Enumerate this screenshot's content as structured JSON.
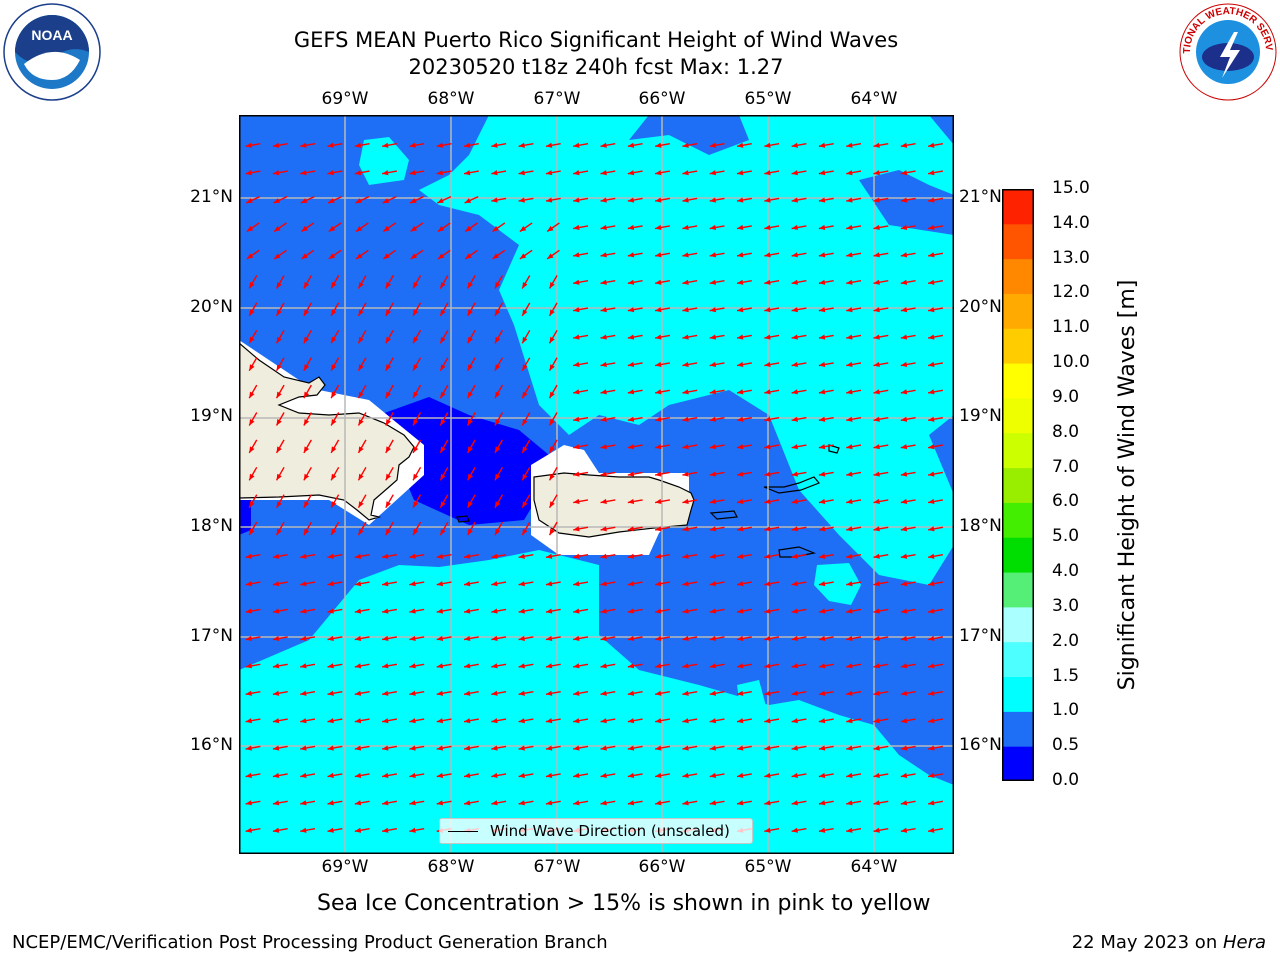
{
  "title": {
    "line1": "GEFS MEAN Puerto Rico Significant Height of Wind Waves",
    "line2": "20230520 t18z 240h fcst   Max: 1.27"
  },
  "map": {
    "lon_labels": [
      "69°W",
      "68°W",
      "67°W",
      "66°W",
      "65°W",
      "64°W"
    ],
    "lat_labels": [
      "21°N",
      "20°N",
      "19°N",
      "18°N",
      "17°N",
      "16°N"
    ],
    "lon_range": [
      -70.0,
      -63.25
    ],
    "lat_range": [
      15.0,
      21.75
    ],
    "arrow_color": "#ff0000",
    "land_color": "#efedde",
    "legend_label": "Wind Wave Direction (unscaled)"
  },
  "colorbar": {
    "label": "Significant Height of Wind Waves [m]",
    "ticks": [
      "0.0",
      "0.5",
      "1.0",
      "1.5",
      "2.0",
      "3.0",
      "4.0",
      "5.0",
      "6.0",
      "7.0",
      "8.0",
      "9.0",
      "10.0",
      "11.0",
      "12.0",
      "13.0",
      "14.0",
      "15.0"
    ],
    "colors": [
      "#0000ff",
      "#1e6ff5",
      "#00ffff",
      "#4dffff",
      "#aaffff",
      "#55ee77",
      "#00dd00",
      "#44ee00",
      "#99ee00",
      "#ccff00",
      "#eeff00",
      "#ffff00",
      "#ffcc00",
      "#ffaa00",
      "#ff8800",
      "#ff5500",
      "#ff2200"
    ]
  },
  "note": "Sea Ice Concentration > 15% is shown in pink to yellow",
  "footer": {
    "left": "NCEP/EMC/Verification Post Processing Product Generation Branch",
    "right_prefix": "22 May 2023 on ",
    "right_host": "Hera"
  },
  "logos": {
    "noaa_text": "NOAA",
    "nws_text": "NATIONAL WEATHER SERVICE"
  }
}
